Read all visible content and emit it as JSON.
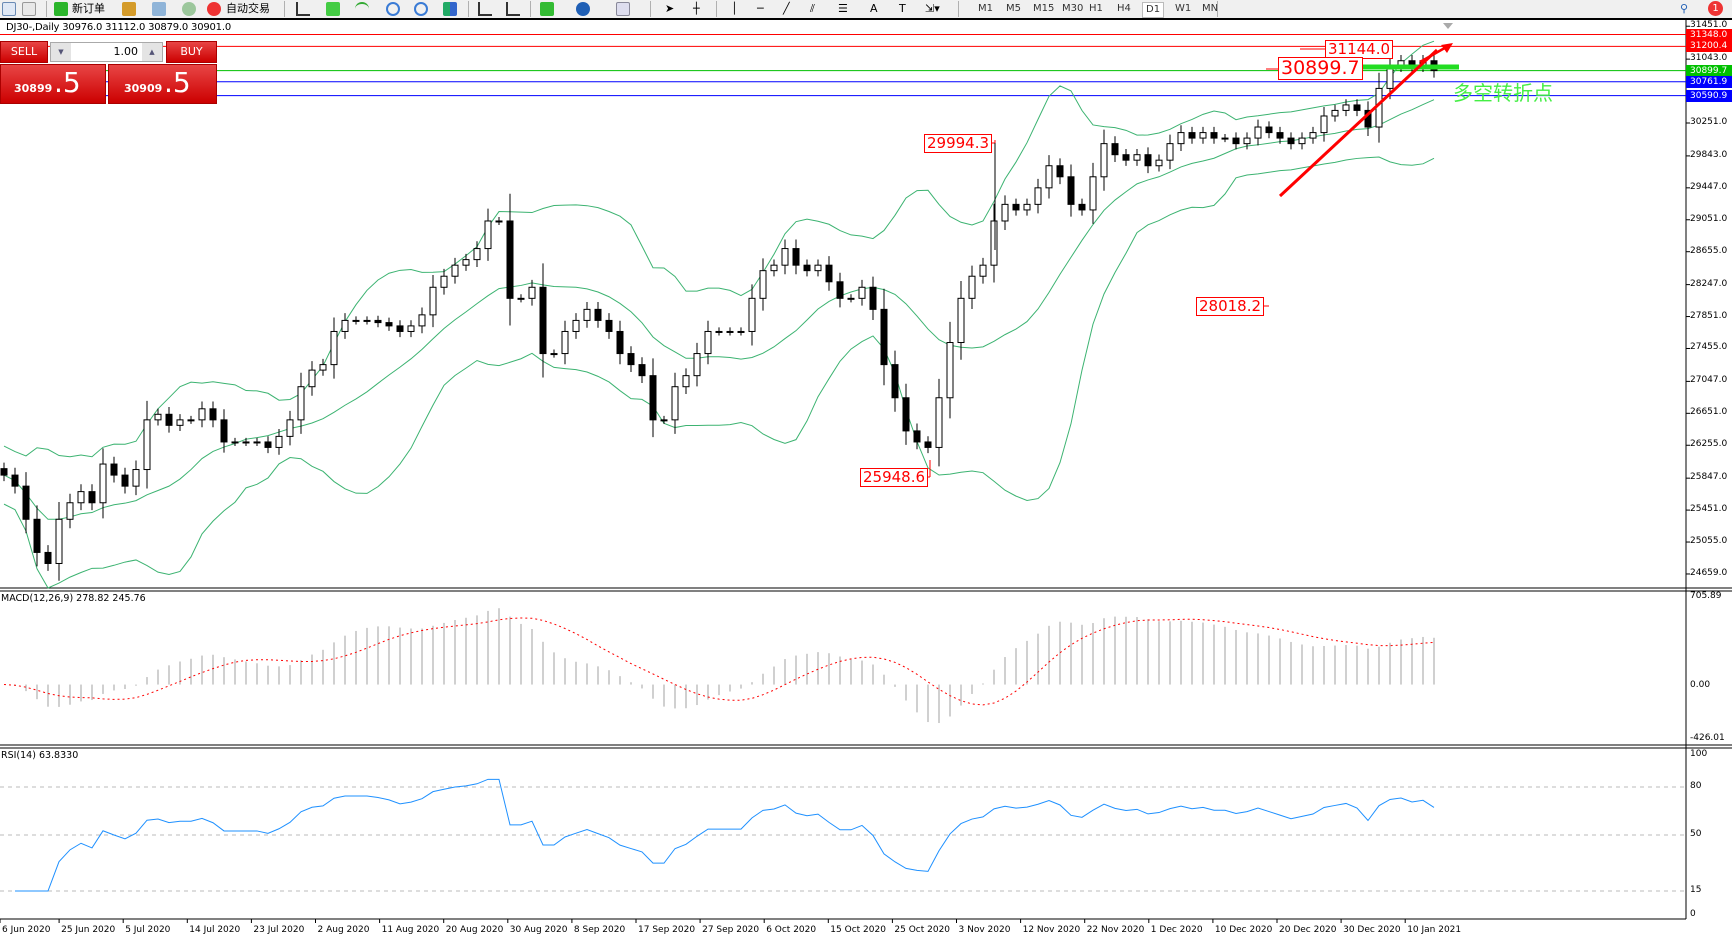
{
  "toolbar": {
    "new_order": "新订单",
    "auto_trading": "自动交易",
    "timeframes": [
      "M1",
      "M5",
      "M15",
      "M30",
      "H1",
      "H4",
      "D1",
      "W1",
      "MN"
    ],
    "active_timeframe": "D1",
    "notification_count": "1"
  },
  "chart_info": "DJ30-,Daily  30976.0 31112.0 30879.0 30901.0",
  "trade_panel": {
    "sell_label": "SELL",
    "buy_label": "BUY",
    "lot": "1.00",
    "sell_price_main": "30899",
    "sell_price_frac": ".5",
    "buy_price_main": "30909",
    "buy_price_frac": ".5"
  },
  "price_axis": [
    "31451.0",
    "31043.0",
    "30251.0",
    "29843.0",
    "29447.0",
    "29051.0",
    "28655.0",
    "28247.0",
    "27851.0",
    "27455.0",
    "27047.0",
    "26651.0",
    "26255.0",
    "25847.0",
    "25451.0",
    "25055.0",
    "24659.0"
  ],
  "levels": [
    {
      "label": "31348.0",
      "color": "#ff0000"
    },
    {
      "label": "31200.4",
      "color": "#ff0000"
    },
    {
      "label": "30899.7",
      "color": "#00c000"
    },
    {
      "label": "30761.9",
      "color": "#0000ff"
    },
    {
      "label": "30590.9",
      "color": "#0000ff"
    }
  ],
  "annotations": {
    "high_label": "31144.0",
    "current_label": "30899.7",
    "nov_label": "29994.3",
    "low_label": "25948.6",
    "mid_label": "28018.2",
    "pivot_text": "多空转折点"
  },
  "macd": {
    "label": "MACD(12,26,9) 278.82 245.76",
    "axis": [
      "705.89",
      "0.00",
      "-426.01"
    ],
    "range": [
      -426.01,
      705.89
    ]
  },
  "rsi": {
    "label": "RSI(14) 63.8330",
    "axis": [
      "100",
      "80",
      "50",
      "15",
      "0"
    ],
    "levels": [
      80,
      50,
      15
    ]
  },
  "date_axis": [
    "6 Jun 2020",
    "25 Jun 2020",
    "5 Jul 2020",
    "14 Jul 2020",
    "23 Jul 2020",
    "2 Aug 2020",
    "11 Aug 2020",
    "20 Aug 2020",
    "30 Aug 2020",
    "8 Sep 2020",
    "17 Sep 2020",
    "27 Sep 2020",
    "6 Oct 2020",
    "15 Oct 2020",
    "25 Oct 2020",
    "3 Nov 2020",
    "12 Nov 2020",
    "22 Nov 2020",
    "1 Dec 2020",
    "10 Dec 2020",
    "20 Dec 2020",
    "30 Dec 2020",
    "10 Jan 2021"
  ],
  "chart_data": {
    "type": "candlestick",
    "symbol": "DJ30-",
    "timeframe": "Daily",
    "ylim": [
      24485,
      31600
    ],
    "indicators": [
      "Bollinger Bands",
      "MACD(12,26,9)",
      "RSI(14)"
    ],
    "colors": {
      "bull": "#ffffff",
      "bear": "#000000",
      "bands": "#3cb371",
      "macd_hist": "#c0c0c0",
      "macd_signal": "#ff0000",
      "rsi": "#1e90ff"
    },
    "close": [
      25885,
      25748,
      25337,
      24926,
      24789,
      25337,
      25542,
      25680,
      25542,
      26022,
      25885,
      25748,
      25954,
      26570,
      26639,
      26502,
      26570,
      26570,
      26707,
      26570,
      26296,
      26296,
      26296,
      26296,
      26228,
      26365,
      26570,
      26981,
      27187,
      27255,
      27666,
      27803,
      27803,
      27803,
      27776,
      27735,
      27666,
      27735,
      27872,
      28214,
      28351,
      28488,
      28557,
      28694,
      29036,
      29036,
      28077,
      28077,
      28214,
      27392,
      27392,
      27666,
      27803,
      27940,
      27803,
      27666,
      27392,
      27255,
      27118,
      26570,
      26570,
      26981,
      27118,
      27392,
      27666,
      27666,
      27666,
      27666,
      28077,
      28420,
      28488,
      28694,
      28488,
      28420,
      28488,
      28282,
      28077,
      28077,
      28214,
      27940,
      27255,
      26844,
      26433,
      26296,
      26228,
      26844,
      27529,
      28077,
      28351,
      28488,
      29036,
      29242,
      29173,
      29242,
      29447,
      29721,
      29584,
      29242,
      29173,
      29584,
      29995,
      29858,
      29790,
      29858,
      29721,
      29790,
      29995,
      30132,
      30064,
      30132,
      30064,
      30064,
      29995,
      30064,
      30201,
      30132,
      30064,
      29995,
      30064,
      30132,
      30338,
      30407,
      30475,
      30407,
      30201,
      30680,
      30954,
      31023,
      30954,
      31023,
      30901
    ]
  }
}
